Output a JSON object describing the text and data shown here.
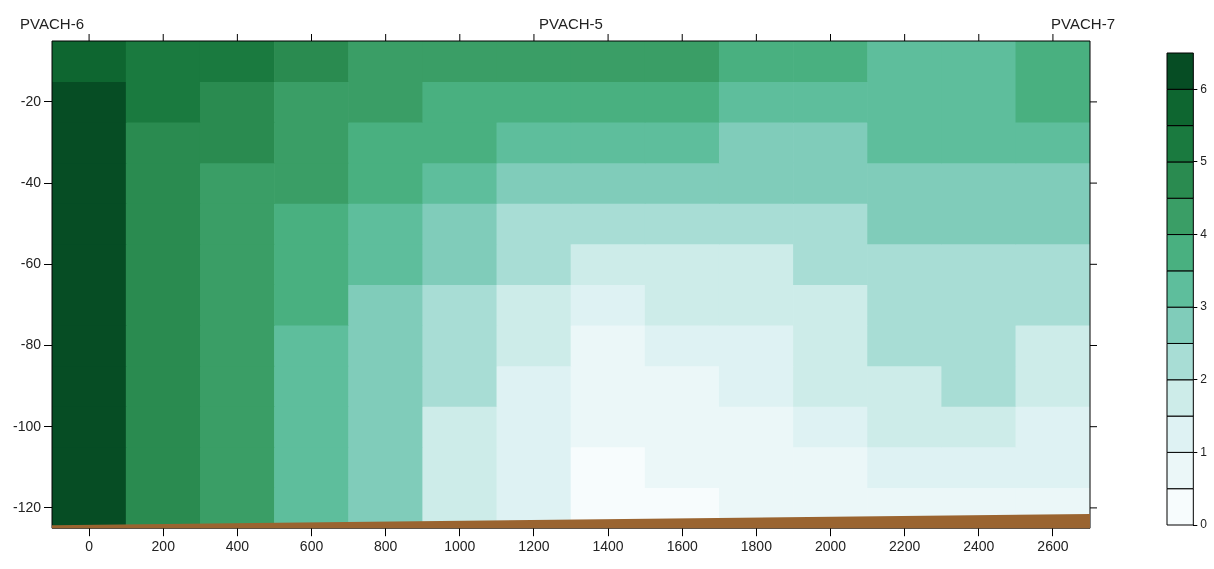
{
  "chart_data": {
    "type": "heatmap",
    "categories": [
      "0",
      "200",
      "400",
      "600",
      "800",
      "1000",
      "1200",
      "1400",
      "1600",
      "1800",
      "2000",
      "2200",
      "2400",
      "2600"
    ],
    "y_categories": [
      null,
      "-20",
      null,
      "-40",
      null,
      "-60",
      null,
      "-80",
      null,
      "-100",
      null,
      "-120"
    ],
    "cells": [
      [
        5.9,
        5.2,
        5.0,
        4.7,
        4.4,
        4.3,
        4.1,
        4.4,
        4.0,
        3.8,
        3.5,
        3.3,
        3.3,
        3.9
      ],
      [
        6.0,
        5.1,
        4.7,
        4.4,
        4.1,
        3.9,
        3.7,
        3.9,
        3.5,
        3.3,
        3.2,
        3.2,
        3.2,
        3.6
      ],
      [
        6.1,
        4.9,
        4.5,
        4.2,
        3.8,
        3.5,
        3.3,
        3.3,
        3.0,
        2.9,
        2.9,
        3.0,
        3.0,
        3.3
      ],
      [
        6.1,
        4.8,
        4.3,
        4.0,
        3.5,
        3.1,
        2.9,
        2.8,
        2.6,
        2.5,
        2.6,
        2.7,
        2.8,
        2.9
      ],
      [
        6.1,
        4.8,
        4.2,
        3.8,
        3.2,
        2.8,
        2.4,
        2.3,
        2.2,
        2.2,
        2.3,
        2.5,
        2.6,
        2.7
      ],
      [
        6.1,
        4.8,
        4.1,
        3.6,
        3.0,
        2.5,
        2.0,
        1.9,
        1.9,
        1.9,
        2.0,
        2.3,
        2.4,
        2.4
      ],
      [
        6.1,
        4.8,
        4.1,
        3.5,
        2.8,
        2.3,
        1.7,
        1.3,
        1.6,
        1.7,
        1.8,
        2.1,
        2.3,
        2.2
      ],
      [
        6.1,
        4.8,
        4.0,
        3.4,
        2.8,
        2.1,
        1.5,
        0.8,
        1.2,
        1.4,
        1.7,
        2.0,
        2.2,
        1.9
      ],
      [
        6.1,
        4.8,
        4.0,
        3.4,
        2.7,
        2.0,
        1.3,
        0.5,
        0.9,
        1.1,
        1.5,
        1.8,
        2.1,
        1.6
      ],
      [
        6.1,
        4.8,
        4.0,
        3.3,
        2.7,
        1.9,
        1.1,
        0.5,
        0.7,
        0.9,
        1.2,
        1.5,
        1.7,
        1.3
      ],
      [
        6.1,
        4.8,
        4.0,
        3.3,
        2.7,
        1.8,
        1.0,
        0.4,
        0.5,
        0.7,
        0.8,
        1.0,
        1.1,
        1.0
      ],
      [
        6.1,
        4.8,
        4.0,
        3.3,
        2.7,
        1.8,
        1.0,
        0.3,
        0.3,
        0.5,
        0.6,
        0.6,
        0.7,
        0.6
      ]
    ],
    "colors": [
      "#f7fcfd",
      "#ebf7f8",
      "#def2f3",
      "#cdece9",
      "#a8ddd5",
      "#80ccba",
      "#5ebe9c",
      "#49b080",
      "#3a9e66",
      "#2a8b50",
      "#1a7a3f",
      "#0e6630",
      "#064d24"
    ],
    "clim": [
      0,
      6.5
    ],
    "cticks": [
      0,
      1,
      2,
      3,
      4,
      5,
      6
    ],
    "annotations": [
      "PVACH-6",
      "PVACH-5",
      "PVACH-7"
    ]
  }
}
